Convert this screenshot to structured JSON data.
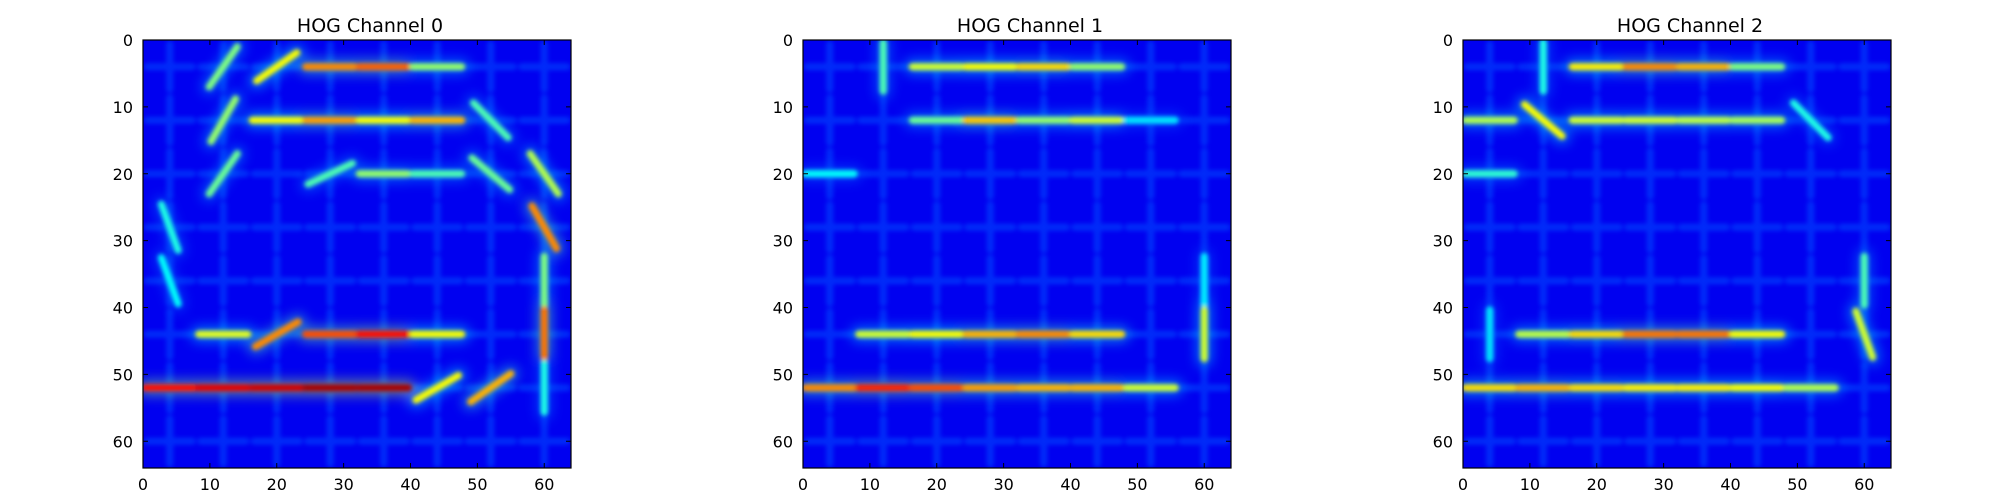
{
  "chart_data": [
    {
      "type": "heatmap",
      "title": "HOG Channel 0",
      "colormap": "jet",
      "xlim": [
        0,
        64
      ],
      "ylim": [
        64,
        0
      ],
      "xticks": [
        0,
        10,
        20,
        30,
        40,
        50,
        60
      ],
      "yticks": [
        0,
        10,
        20,
        30,
        40,
        50,
        60
      ],
      "grid": false,
      "cell_size": 8,
      "strokes": [
        {
          "cx": 12,
          "cy": 4,
          "angle": -55,
          "v": 0.5
        },
        {
          "cx": 20,
          "cy": 4,
          "angle": -35,
          "v": 0.62
        },
        {
          "cx": 28,
          "cy": 4,
          "angle": 0,
          "v": 0.74
        },
        {
          "cx": 36,
          "cy": 4,
          "angle": 0,
          "v": 0.78
        },
        {
          "cx": 44,
          "cy": 4,
          "angle": 0,
          "v": 0.52
        },
        {
          "cx": 12,
          "cy": 12,
          "angle": -60,
          "v": 0.52
        },
        {
          "cx": 20,
          "cy": 12,
          "angle": 0,
          "v": 0.62
        },
        {
          "cx": 28,
          "cy": 12,
          "angle": 0,
          "v": 0.72
        },
        {
          "cx": 36,
          "cy": 12,
          "angle": 0,
          "v": 0.62
        },
        {
          "cx": 44,
          "cy": 12,
          "angle": 0,
          "v": 0.7
        },
        {
          "cx": 52,
          "cy": 12,
          "angle": 45,
          "v": 0.45
        },
        {
          "cx": 12,
          "cy": 20,
          "angle": -55,
          "v": 0.48
        },
        {
          "cx": 28,
          "cy": 20,
          "angle": -25,
          "v": 0.45
        },
        {
          "cx": 36,
          "cy": 20,
          "angle": 0,
          "v": 0.52
        },
        {
          "cx": 44,
          "cy": 20,
          "angle": 0,
          "v": 0.45
        },
        {
          "cx": 52,
          "cy": 20,
          "angle": 40,
          "v": 0.48
        },
        {
          "cx": 60,
          "cy": 20,
          "angle": 55,
          "v": 0.55
        },
        {
          "cx": 60,
          "cy": 28,
          "angle": 60,
          "v": 0.74
        },
        {
          "cx": 4,
          "cy": 28,
          "angle": 70,
          "v": 0.4
        },
        {
          "cx": 4,
          "cy": 36,
          "angle": 70,
          "v": 0.38
        },
        {
          "cx": 60,
          "cy": 36,
          "angle": 90,
          "v": 0.5
        },
        {
          "cx": 12,
          "cy": 44,
          "angle": 0,
          "v": 0.6
        },
        {
          "cx": 20,
          "cy": 44,
          "angle": -30,
          "v": 0.74
        },
        {
          "cx": 28,
          "cy": 44,
          "angle": 0,
          "v": 0.8
        },
        {
          "cx": 36,
          "cy": 44,
          "angle": 0,
          "v": 0.86
        },
        {
          "cx": 44,
          "cy": 44,
          "angle": 0,
          "v": 0.62
        },
        {
          "cx": 60,
          "cy": 44,
          "angle": 90,
          "v": 0.76
        },
        {
          "cx": 4,
          "cy": 52,
          "angle": 0,
          "v": 0.86
        },
        {
          "cx": 12,
          "cy": 52,
          "angle": 0,
          "v": 0.9
        },
        {
          "cx": 20,
          "cy": 52,
          "angle": 0,
          "v": 0.92
        },
        {
          "cx": 28,
          "cy": 52,
          "angle": 0,
          "v": 0.96
        },
        {
          "cx": 36,
          "cy": 52,
          "angle": 0,
          "v": 0.96
        },
        {
          "cx": 44,
          "cy": 52,
          "angle": -30,
          "v": 0.62
        },
        {
          "cx": 52,
          "cy": 52,
          "angle": -35,
          "v": 0.7
        },
        {
          "cx": 60,
          "cy": 52,
          "angle": 90,
          "v": 0.4
        }
      ]
    },
    {
      "type": "heatmap",
      "title": "HOG Channel 1",
      "colormap": "jet",
      "xlim": [
        0,
        64
      ],
      "ylim": [
        64,
        0
      ],
      "xticks": [
        0,
        10,
        20,
        30,
        40,
        50,
        60
      ],
      "yticks": [
        0,
        10,
        20,
        30,
        40,
        50,
        60
      ],
      "grid": false,
      "cell_size": 8,
      "strokes": [
        {
          "cx": 12,
          "cy": 4,
          "angle": 90,
          "v": 0.45
        },
        {
          "cx": 20,
          "cy": 4,
          "angle": 0,
          "v": 0.58
        },
        {
          "cx": 28,
          "cy": 4,
          "angle": 0,
          "v": 0.62
        },
        {
          "cx": 36,
          "cy": 4,
          "angle": 0,
          "v": 0.66
        },
        {
          "cx": 44,
          "cy": 4,
          "angle": 0,
          "v": 0.52
        },
        {
          "cx": 20,
          "cy": 12,
          "angle": 0,
          "v": 0.48
        },
        {
          "cx": 28,
          "cy": 12,
          "angle": 0,
          "v": 0.68
        },
        {
          "cx": 36,
          "cy": 12,
          "angle": 0,
          "v": 0.52
        },
        {
          "cx": 44,
          "cy": 12,
          "angle": 0,
          "v": 0.58
        },
        {
          "cx": 52,
          "cy": 12,
          "angle": 0,
          "v": 0.35
        },
        {
          "cx": 4,
          "cy": 20,
          "angle": 0,
          "v": 0.38
        },
        {
          "cx": 60,
          "cy": 36,
          "angle": 90,
          "v": 0.36
        },
        {
          "cx": 12,
          "cy": 44,
          "angle": 0,
          "v": 0.58
        },
        {
          "cx": 20,
          "cy": 44,
          "angle": 0,
          "v": 0.62
        },
        {
          "cx": 28,
          "cy": 44,
          "angle": 0,
          "v": 0.7
        },
        {
          "cx": 36,
          "cy": 44,
          "angle": 0,
          "v": 0.74
        },
        {
          "cx": 44,
          "cy": 44,
          "angle": 0,
          "v": 0.66
        },
        {
          "cx": 60,
          "cy": 44,
          "angle": 90,
          "v": 0.58
        },
        {
          "cx": 4,
          "cy": 52,
          "angle": 0,
          "v": 0.74
        },
        {
          "cx": 12,
          "cy": 52,
          "angle": 0,
          "v": 0.84
        },
        {
          "cx": 20,
          "cy": 52,
          "angle": 0,
          "v": 0.8
        },
        {
          "cx": 28,
          "cy": 52,
          "angle": 0,
          "v": 0.72
        },
        {
          "cx": 36,
          "cy": 52,
          "angle": 0,
          "v": 0.7
        },
        {
          "cx": 44,
          "cy": 52,
          "angle": 0,
          "v": 0.7
        },
        {
          "cx": 52,
          "cy": 52,
          "angle": 0,
          "v": 0.58
        }
      ]
    },
    {
      "type": "heatmap",
      "title": "HOG Channel 2",
      "colormap": "jet",
      "xlim": [
        0,
        64
      ],
      "ylim": [
        64,
        0
      ],
      "xticks": [
        0,
        10,
        20,
        30,
        40,
        50,
        60
      ],
      "yticks": [
        0,
        10,
        20,
        30,
        40,
        50,
        60
      ],
      "grid": false,
      "cell_size": 8,
      "strokes": [
        {
          "cx": 12,
          "cy": 4,
          "angle": 90,
          "v": 0.4
        },
        {
          "cx": 20,
          "cy": 4,
          "angle": 0,
          "v": 0.64
        },
        {
          "cx": 28,
          "cy": 4,
          "angle": 0,
          "v": 0.74
        },
        {
          "cx": 36,
          "cy": 4,
          "angle": 0,
          "v": 0.7
        },
        {
          "cx": 44,
          "cy": 4,
          "angle": 0,
          "v": 0.5
        },
        {
          "cx": 4,
          "cy": 12,
          "angle": 0,
          "v": 0.55
        },
        {
          "cx": 12,
          "cy": 12,
          "angle": 40,
          "v": 0.62
        },
        {
          "cx": 20,
          "cy": 12,
          "angle": 0,
          "v": 0.58
        },
        {
          "cx": 28,
          "cy": 12,
          "angle": 0,
          "v": 0.58
        },
        {
          "cx": 36,
          "cy": 12,
          "angle": 0,
          "v": 0.56
        },
        {
          "cx": 44,
          "cy": 12,
          "angle": 0,
          "v": 0.54
        },
        {
          "cx": 52,
          "cy": 12,
          "angle": 45,
          "v": 0.4
        },
        {
          "cx": 4,
          "cy": 20,
          "angle": 0,
          "v": 0.42
        },
        {
          "cx": 60,
          "cy": 36,
          "angle": 90,
          "v": 0.45
        },
        {
          "cx": 4,
          "cy": 44,
          "angle": 90,
          "v": 0.35
        },
        {
          "cx": 12,
          "cy": 44,
          "angle": 0,
          "v": 0.56
        },
        {
          "cx": 20,
          "cy": 44,
          "angle": 0,
          "v": 0.66
        },
        {
          "cx": 28,
          "cy": 44,
          "angle": 0,
          "v": 0.76
        },
        {
          "cx": 36,
          "cy": 44,
          "angle": 0,
          "v": 0.76
        },
        {
          "cx": 44,
          "cy": 44,
          "angle": 0,
          "v": 0.62
        },
        {
          "cx": 60,
          "cy": 44,
          "angle": 70,
          "v": 0.58
        },
        {
          "cx": 4,
          "cy": 52,
          "angle": 0,
          "v": 0.66
        },
        {
          "cx": 12,
          "cy": 52,
          "angle": 0,
          "v": 0.7
        },
        {
          "cx": 20,
          "cy": 52,
          "angle": 0,
          "v": 0.66
        },
        {
          "cx": 28,
          "cy": 52,
          "angle": 0,
          "v": 0.64
        },
        {
          "cx": 36,
          "cy": 52,
          "angle": 0,
          "v": 0.64
        },
        {
          "cx": 44,
          "cy": 52,
          "angle": 0,
          "v": 0.62
        },
        {
          "cx": 52,
          "cy": 52,
          "angle": 0,
          "v": 0.55
        }
      ]
    }
  ]
}
